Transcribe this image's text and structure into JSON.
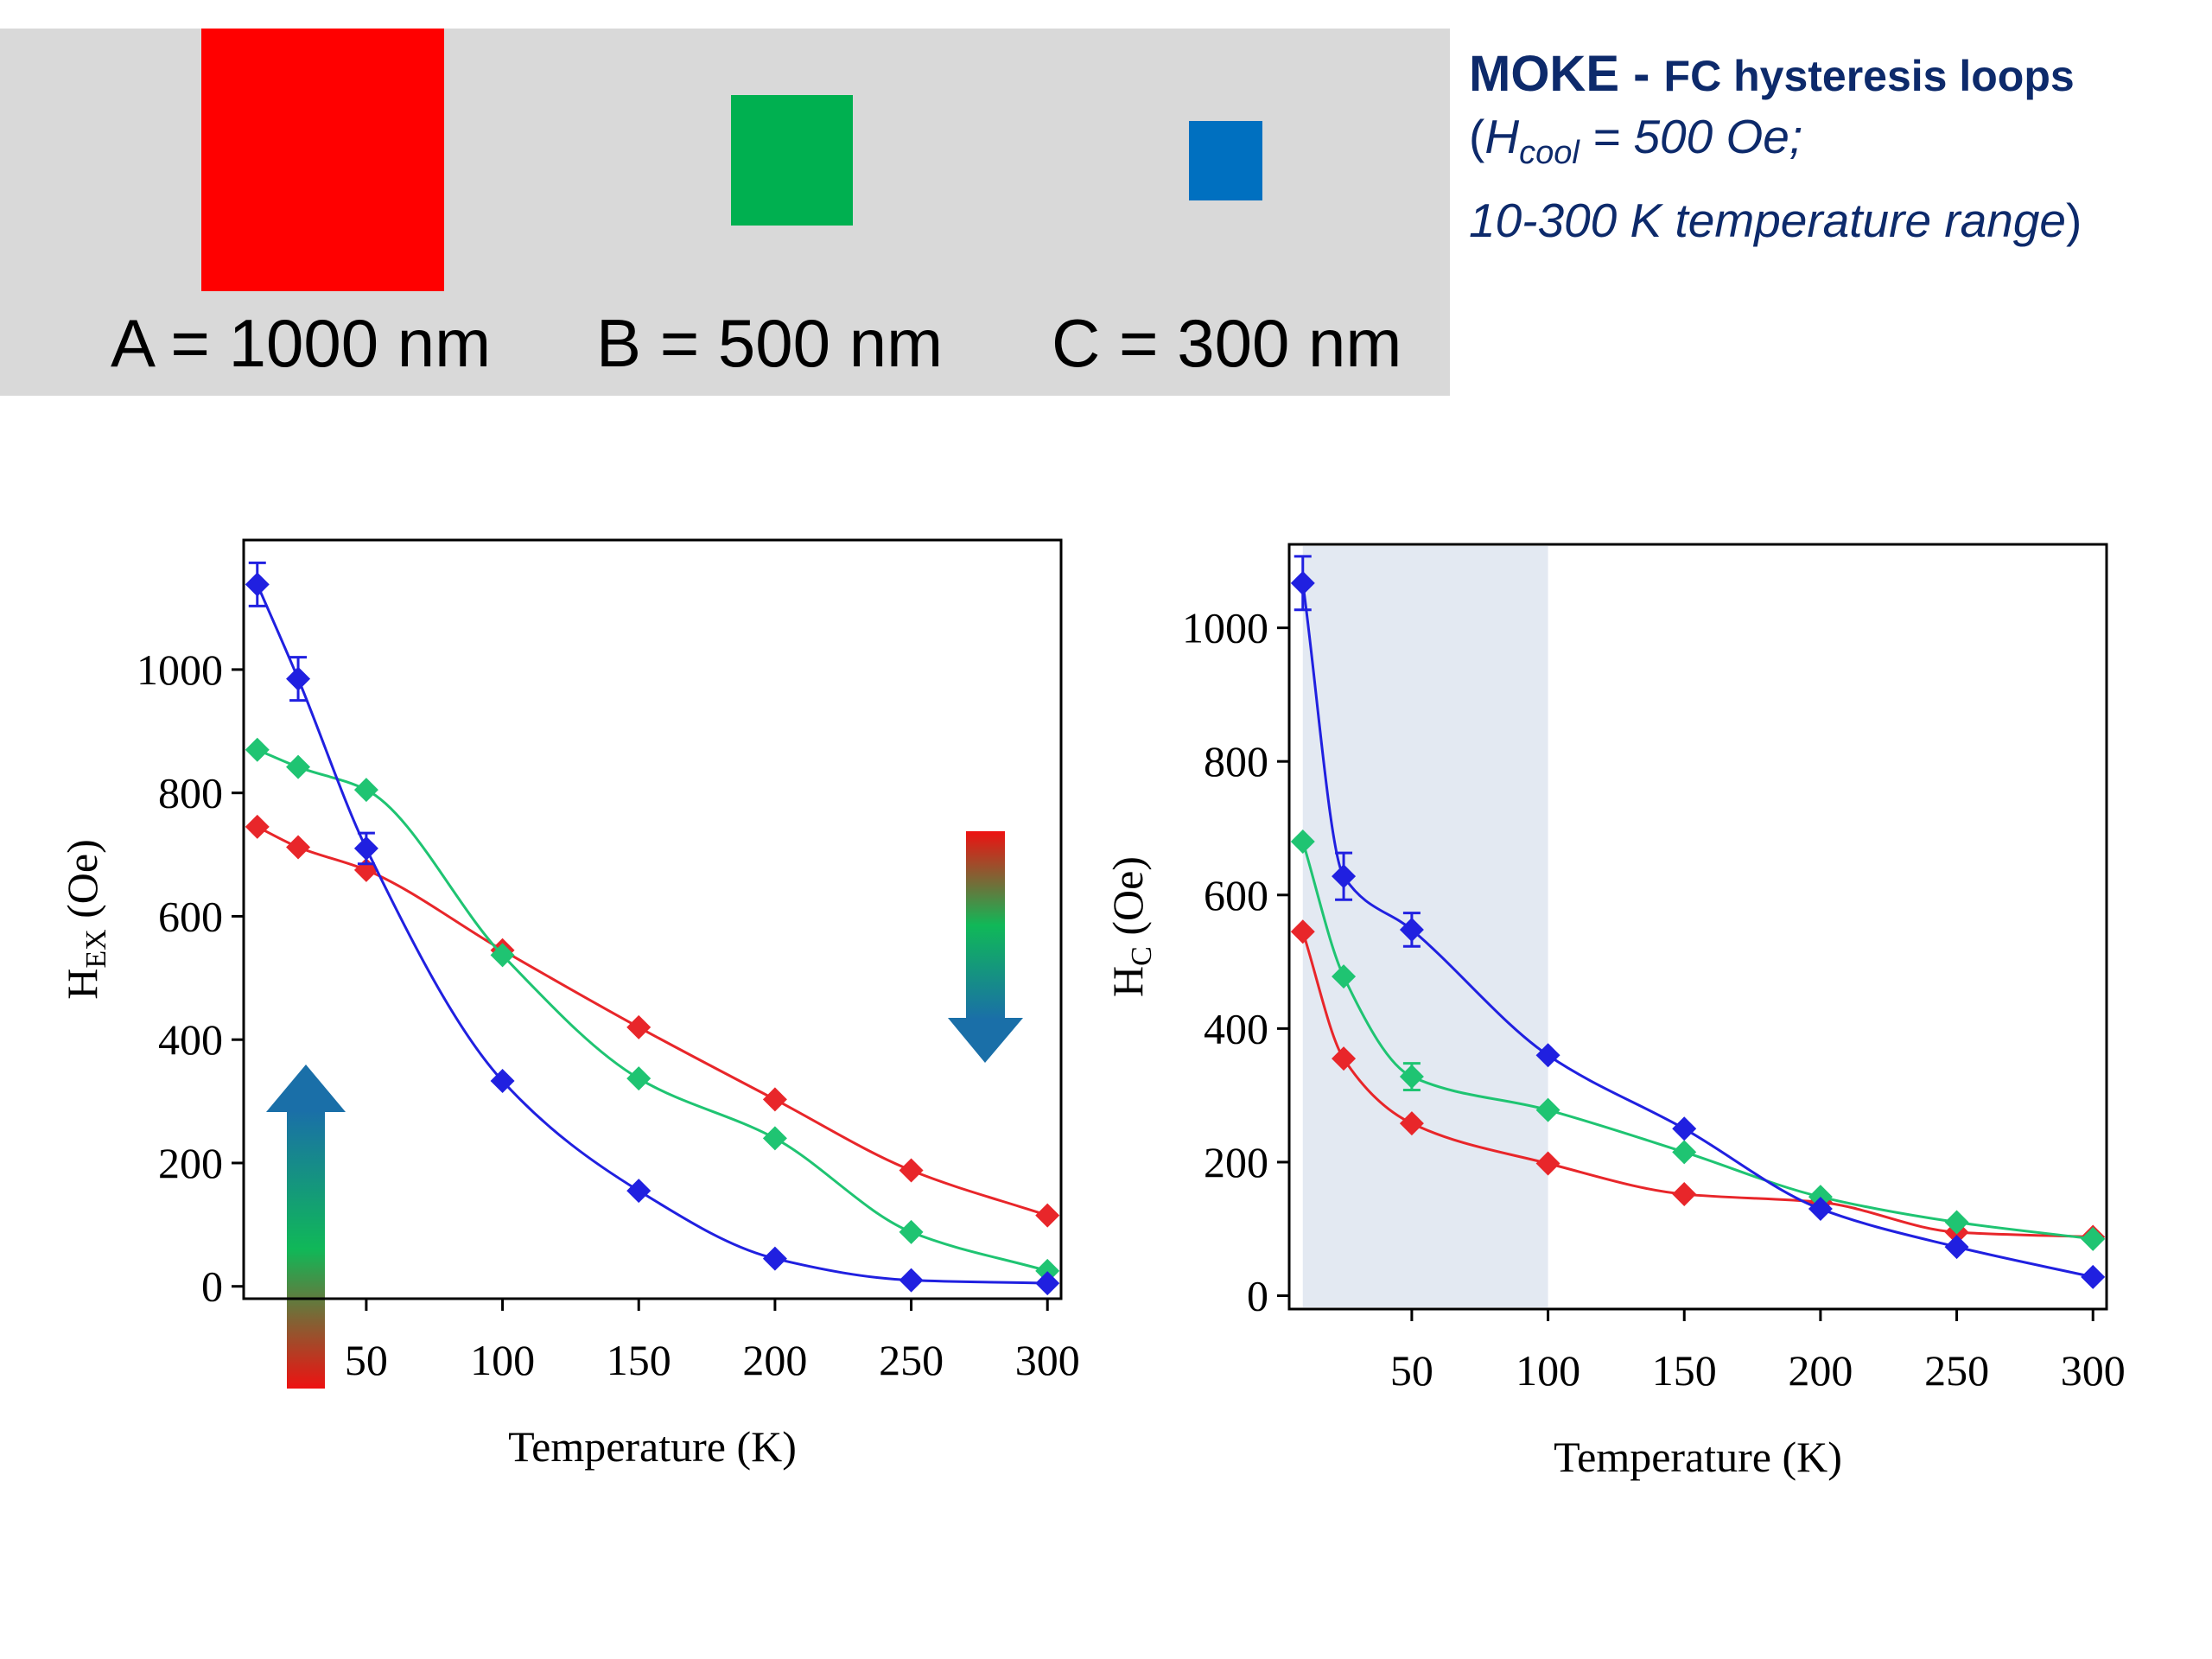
{
  "colors": {
    "A": "#ff0000",
    "B": "#00b050",
    "C": "#0070c0",
    "series_A": "#e8262a",
    "series_B": "#1fc472",
    "series_C": "#2020e0",
    "note_text": "#0d2a6b",
    "shade": "#e3e9f2"
  },
  "legend": {
    "a_label": "A = 1000 nm",
    "b_label": "B = 500 nm",
    "c_label": "C = 300 nm"
  },
  "note": {
    "line1_main": "MOKE - ",
    "line1_rest": "FC hysteresis loops",
    "line2_open": "(",
    "line2_h": "H",
    "line2_sub": "cool",
    "line2_rest": " = 500 Oe;",
    "line3": "10-300 K temperature range",
    "line3_close": ")"
  },
  "chart_data": [
    {
      "type": "scatter",
      "ylabel_main": "H",
      "ylabel_sub": "EX",
      "ylabel_unit": " (Oe)",
      "xlabel": "Temperature (K)",
      "xlim": [
        5,
        305
      ],
      "ylim": [
        -20,
        1210
      ],
      "xticks": [
        50,
        100,
        150,
        200,
        250,
        300
      ],
      "yticks": [
        0,
        200,
        400,
        600,
        800,
        1000
      ],
      "grid": false,
      "fit_lines": true,
      "arrows": [
        "up (red to green to blue)",
        "down (red to green to blue)"
      ],
      "x": [
        10,
        25,
        50,
        100,
        150,
        200,
        250,
        300
      ],
      "series": [
        {
          "color_key": "series_A",
          "values": [
            745,
            712,
            675,
            545,
            420,
            303,
            188,
            115
          ]
        },
        {
          "color_key": "series_B",
          "values": [
            870,
            842,
            805,
            537,
            337,
            240,
            88,
            25
          ]
        },
        {
          "color_key": "series_C",
          "values": [
            1138,
            985,
            710,
            333,
            155,
            45,
            10,
            5
          ],
          "errors": [
            35,
            35,
            25,
            0,
            0,
            0,
            0,
            0
          ]
        }
      ]
    },
    {
      "type": "scatter",
      "ylabel_main": "H",
      "ylabel_sub": "C",
      "ylabel_unit": " (Oe)",
      "xlabel": "Temperature (K)",
      "xlim": [
        5,
        305
      ],
      "ylim": [
        -20,
        1125
      ],
      "xticks": [
        50,
        100,
        150,
        200,
        250,
        300
      ],
      "yticks": [
        0,
        200,
        400,
        600,
        800,
        1000
      ],
      "grid": false,
      "fit_lines": true,
      "shaded_x_range": [
        10,
        100
      ],
      "x": [
        10,
        25,
        50,
        100,
        150,
        200,
        250,
        300
      ],
      "series": [
        {
          "color_key": "series_A",
          "values": [
            545,
            355,
            258,
            198,
            152,
            140,
            95,
            88
          ]
        },
        {
          "color_key": "series_B",
          "values": [
            680,
            478,
            328,
            278,
            215,
            148,
            110,
            85
          ],
          "errors": [
            0,
            0,
            20,
            0,
            0,
            0,
            0,
            0
          ]
        },
        {
          "color_key": "series_C",
          "values": [
            1067,
            628,
            548,
            360,
            250,
            130,
            73,
            28
          ],
          "errors": [
            40,
            35,
            25,
            0,
            0,
            0,
            0,
            0
          ]
        }
      ]
    }
  ]
}
